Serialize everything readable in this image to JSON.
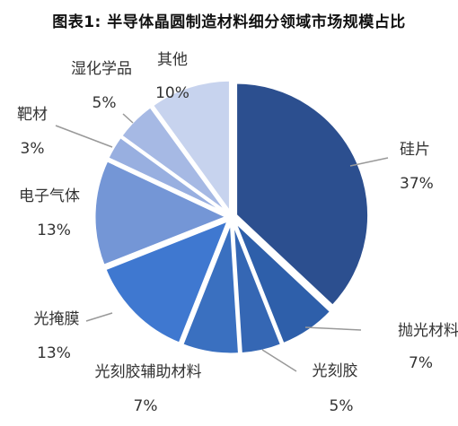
{
  "chart_data": {
    "type": "pie",
    "title": "图表1: 半导体晶圆制造材料细分领域市场规模占比",
    "slices": [
      {
        "name": "硅片",
        "value": 37,
        "label": "37%",
        "color": "#2c4f8f"
      },
      {
        "name": "抛光材料",
        "value": 7,
        "label": "7%",
        "color": "#2e5faa"
      },
      {
        "name": "光刻胶",
        "value": 5,
        "label": "5%",
        "color": "#3567b4"
      },
      {
        "name": "光刻胶辅助材料",
        "value": 7,
        "label": "7%",
        "color": "#3a70c0"
      },
      {
        "name": "光掩膜",
        "value": 13,
        "label": "13%",
        "color": "#3f78d0"
      },
      {
        "name": "电子气体",
        "value": 13,
        "label": "13%",
        "color": "#7496d6"
      },
      {
        "name": "靶材",
        "value": 3,
        "label": "3%",
        "color": "#98afe0"
      },
      {
        "name": "湿化学品",
        "value": 5,
        "label": "5%",
        "color": "#a6b9e4"
      },
      {
        "name": "其他",
        "value": 10,
        "label": "10%",
        "color": "#c7d3ee"
      }
    ]
  }
}
